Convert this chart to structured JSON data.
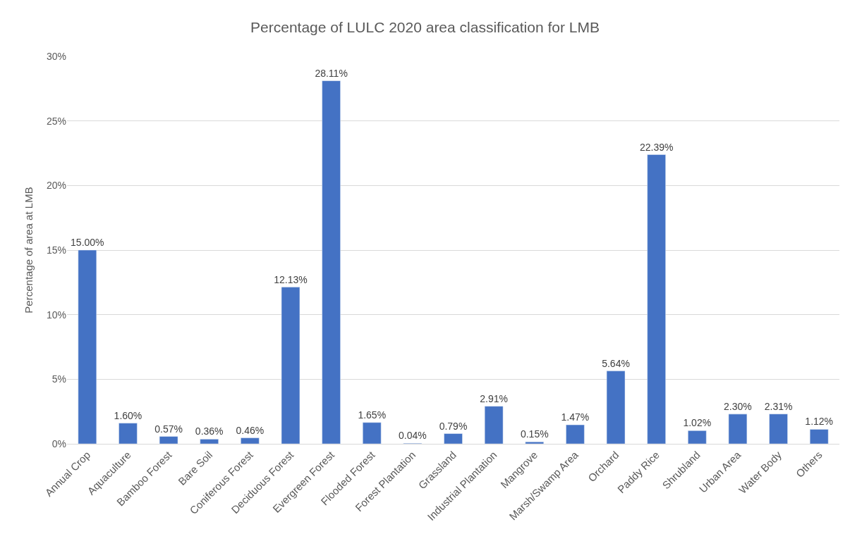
{
  "chart_data": {
    "type": "bar",
    "title": "Percentage of LULC 2020 area classification for LMB",
    "ylabel": "Percentage of area at LMB",
    "categories": [
      "Annual Crop",
      "Aquaculture",
      "Bamboo Forest",
      "Bare Soil",
      "Coniferous Forest",
      "Deciduous Forest",
      "Evergreen Forest",
      "Flooded Forest",
      "Forest Plantation",
      "Grassland",
      "Industrial Plantation",
      "Mangrove",
      "Marsh/Swamp Area",
      "Orchard",
      "Paddy Rice",
      "Shrubland",
      "Urban Area",
      "Water Body",
      "Others"
    ],
    "values": [
      15.0,
      1.6,
      0.57,
      0.36,
      0.46,
      12.13,
      28.11,
      1.65,
      0.04,
      0.79,
      2.91,
      0.15,
      1.47,
      5.64,
      22.39,
      1.02,
      2.3,
      2.31,
      1.12
    ],
    "value_labels": [
      "15.00%",
      "1.60%",
      "0.57%",
      "0.36%",
      "0.46%",
      "12.13%",
      "28.11%",
      "1.65%",
      "0.04%",
      "0.79%",
      "2.91%",
      "0.15%",
      "1.47%",
      "5.64%",
      "22.39%",
      "1.02%",
      "2.30%",
      "2.31%",
      "1.12%"
    ],
    "color": "#4472c4",
    "ylim": [
      0,
      30
    ],
    "yticks": [
      {
        "value": 0,
        "label": "0%"
      },
      {
        "value": 5,
        "label": "5%"
      },
      {
        "value": 10,
        "label": "10%"
      },
      {
        "value": 15,
        "label": "15%"
      },
      {
        "value": 20,
        "label": "20%"
      },
      {
        "value": 25,
        "label": "25%"
      },
      {
        "value": 30,
        "label": "30%"
      }
    ],
    "grid": "y",
    "legend": false
  }
}
